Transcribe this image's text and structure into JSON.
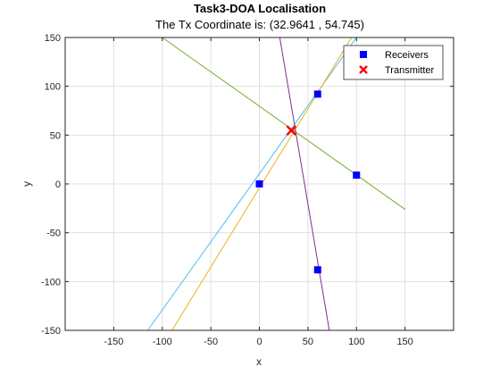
{
  "chart_data": {
    "type": "scatter",
    "title": "Task3-DOA Localisation",
    "subtitle": "The Tx Coordinate is: (32.9641 , 54.745)",
    "xlabel": "x",
    "ylabel": "y",
    "xlim": [
      -200,
      200
    ],
    "ylim": [
      -150,
      150
    ],
    "xticks": [
      -150,
      -100,
      -50,
      0,
      50,
      100,
      150
    ],
    "yticks": [
      -150,
      -100,
      -50,
      0,
      50,
      100,
      150
    ],
    "xtick_labels": [
      "-150",
      "-100",
      "-50",
      "0",
      "50",
      "100",
      "150"
    ],
    "ytick_labels": [
      "-150",
      "-100",
      "-50",
      "0",
      "50",
      "100",
      "150"
    ],
    "grid": true,
    "legend_position": "top-right",
    "series": [
      {
        "name": "Receivers",
        "marker": "square",
        "color": "#0000ff",
        "points": [
          [
            0,
            0
          ],
          [
            60,
            92
          ],
          [
            100,
            9
          ],
          [
            60,
            -88
          ]
        ]
      },
      {
        "name": "Transmitter",
        "marker": "x",
        "color": "#ff0000",
        "points": [
          [
            32.9641,
            54.745
          ]
        ]
      }
    ],
    "lines": [
      {
        "color": "#4dbeee",
        "points": [
          [
            -115,
            -150
          ],
          [
            100,
            150
          ]
        ]
      },
      {
        "color": "#edb120",
        "points": [
          [
            -90,
            -150
          ],
          [
            95,
            150
          ]
        ]
      },
      {
        "color": "#77ac30",
        "points": [
          [
            -100,
            150
          ],
          [
            150,
            -26
          ]
        ]
      },
      {
        "color": "#7e2f8e",
        "points": [
          [
            21,
            150
          ],
          [
            72,
            -150
          ]
        ]
      }
    ]
  }
}
